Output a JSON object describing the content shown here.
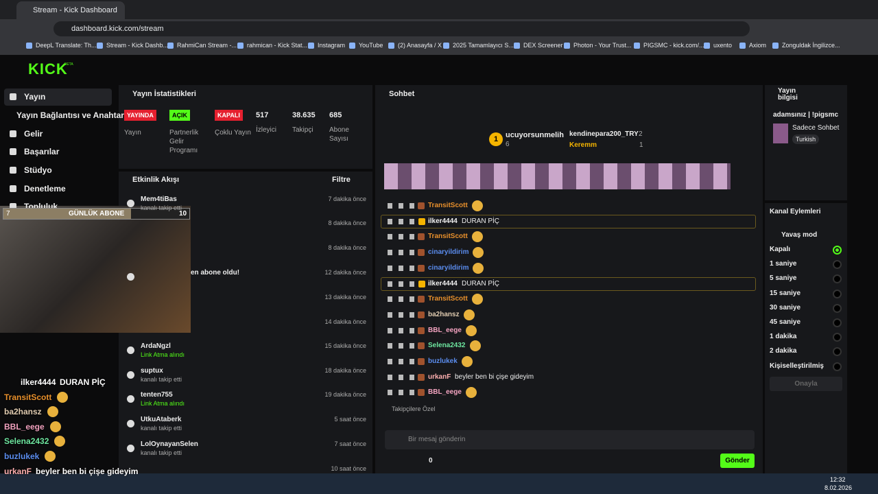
{
  "browser": {
    "tab": "Stream - Kick Dashboard",
    "url": "dashboard.kick.com/stream",
    "bookmarks": [
      "DeepL Translate: Th...",
      "Stream - Kick Dashb...",
      "RahmiCan Stream -...",
      "rahmican - Kick Stat...",
      "Instagram",
      "YouTube",
      "(2) Anasayfa / X",
      "2025 Tamamlayıcı S...",
      "DEX Screener",
      "Photon - Your Trust...",
      "PIGSMC - kick.com/...",
      "uxento",
      "Axiom",
      "Zonguldak İngilizce..."
    ]
  },
  "header": {
    "logo": "KICK",
    "beta": "BETA"
  },
  "sidebar": {
    "items": [
      "Yayın",
      "Yayın Bağlantısı ve Anahtarı",
      "Gelir",
      "Başarılar",
      "Stüdyo",
      "Denetleme",
      "Topluluk"
    ]
  },
  "goal": {
    "current": 7,
    "label": "GÜNLÜK ABONE",
    "target": 10
  },
  "stats": {
    "title": "Yayın İstatistikleri",
    "badges": [
      {
        "badge": "YAYINDA",
        "label": "Yayın"
      },
      {
        "badge": "AÇIK",
        "label": "Partnerlik Gelir Programı"
      },
      {
        "badge": "KAPALI",
        "label": "Çoklu Yayın"
      }
    ],
    "metrics": [
      {
        "value": "517",
        "label": "İzleyici"
      },
      {
        "value": "38.635",
        "label": "Takipçi"
      },
      {
        "value": "685",
        "label": "Abone Sayısı"
      }
    ]
  },
  "activity": {
    "title": "Etkinlik Akışı",
    "filter": "Filtre",
    "items": [
      {
        "name": "Mem4tiBas",
        "action": "kanalı takip etti",
        "time": "7 dakika önce"
      },
      {
        "time": "8 dakika önce"
      },
      {
        "time": "8 dakika önce"
      },
      {
        "name": "en abone oldu!",
        "time": "12 dakika önce"
      },
      {
        "time": "13 dakika önce"
      },
      {
        "time": "14 dakika önce"
      },
      {
        "name": "ArdaNgzl",
        "action": "Link Atma alındı",
        "time": "15 dakika önce"
      },
      {
        "name": "suptux",
        "action": "kanalı takip etti",
        "time": "18 dakika önce"
      },
      {
        "name": "tenten755",
        "action": "Link Atma alındı",
        "time": "19 dakika önce"
      },
      {
        "name": "UtkuAtaberk",
        "action": "kanalı takip etti",
        "time": "5 saat önce"
      },
      {
        "name": "LolOynayanSelen",
        "action": "kanalı takip etti",
        "time": "7 saat önce"
      },
      {
        "time": "10 saat önce"
      }
    ]
  },
  "chat": {
    "title": "Sohbet",
    "leaders": [
      {
        "name": "ucuyorsunmelih",
        "count": "6"
      },
      {
        "name": "kendinepara200_TRY",
        "count": "2"
      },
      {
        "name": "Keremm",
        "count": "1"
      }
    ],
    "rank": "1",
    "messages": [
      {
        "user": "TransitScott",
        "color": "#e8902c"
      },
      {
        "user": "ilker4444",
        "color": "#f2f2f2",
        "text": "DURAN PİÇ",
        "highlight": true
      },
      {
        "user": "TransitScott",
        "color": "#e8902c"
      },
      {
        "user": "cinaryildirim",
        "color": "#5b8def"
      },
      {
        "user": "cinaryildirim",
        "color": "#5b8def"
      },
      {
        "user": "ilker4444",
        "color": "#f2f2f2",
        "text": "DURAN PİÇ",
        "highlight": true
      },
      {
        "user": "TransitScott",
        "color": "#e8902c"
      },
      {
        "user": "ba2hansz",
        "color": "#e0cbb0"
      },
      {
        "user": "BBL_eege",
        "color": "#f3a3c0"
      },
      {
        "user": "Selena2432",
        "color": "#6ee7a0"
      },
      {
        "user": "buzlukek",
        "color": "#5b8def"
      },
      {
        "user": "urkanF",
        "color": "#ffb0b0",
        "text": "beyler ben bi çişe gideyim"
      },
      {
        "user": "BBL_eege",
        "color": "#f3a3c0"
      }
    ],
    "followers_only": "Takipçilere Özel",
    "placeholder": "Bir mesaj gönderin",
    "counter": "0",
    "send": "Gönder"
  },
  "stream_info": {
    "title": "Yayın bilgisi",
    "stream_title": "adamsınız | !pigsmc",
    "category": "Sadece Sohbet",
    "language": "Turkish"
  },
  "channel_actions": {
    "title": "Kanal Eylemleri",
    "back": "Yavaş mod",
    "options": [
      "Kapalı",
      "1 saniye",
      "5 saniye",
      "15 saniye",
      "30 saniye",
      "45 saniye",
      "1 dakika",
      "2 dakika",
      "Kişiselleştirilmiş"
    ],
    "selected": 0,
    "confirm": "Onayla"
  },
  "overlay_chat": [
    {
      "user": "ilker4444",
      "color": "#ffffff",
      "text": "DURAN PİÇ"
    },
    {
      "user": "TransitScott",
      "color": "#e8902c"
    },
    {
      "user": "ba2hansz",
      "color": "#e0cbb0"
    },
    {
      "user": "BBL_eege",
      "color": "#f3a3c0"
    },
    {
      "user": "Selena2432",
      "color": "#6ee7a0"
    },
    {
      "user": "buzlukek",
      "color": "#5b8def"
    },
    {
      "user": "urkanF",
      "color": "#ffb0b0",
      "text": "beyler ben bi çişe gideyim"
    }
  ],
  "taskbar": {
    "time": "12:32",
    "date": "8.02.2026"
  }
}
